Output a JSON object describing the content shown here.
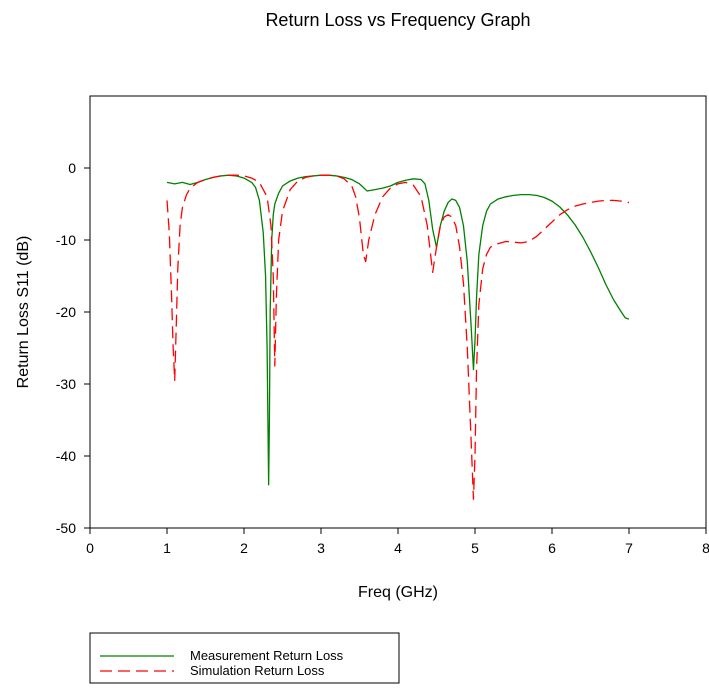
{
  "chart_data": {
    "type": "line",
    "title": "Return Loss vs Frequency Graph",
    "xlabel": "Freq (GHz)",
    "ylabel": "Return Loss S11 (dB)",
    "xlim": [
      0,
      8
    ],
    "ylim": [
      -50,
      10
    ],
    "xticks": [
      0,
      1,
      2,
      3,
      4,
      5,
      6,
      7,
      8
    ],
    "yticks": [
      -50,
      -40,
      -30,
      -20,
      -10,
      0
    ],
    "grid": false,
    "legend_placement": "bottom-left",
    "series": [
      {
        "name": "Measurement Return Loss",
        "color": "#008000",
        "style": "solid",
        "x": [
          1.0,
          1.1,
          1.2,
          1.3,
          1.4,
          1.5,
          1.6,
          1.7,
          1.8,
          1.9,
          2.0,
          2.1,
          2.15,
          2.2,
          2.25,
          2.28,
          2.3,
          2.32,
          2.33,
          2.34,
          2.36,
          2.38,
          2.4,
          2.45,
          2.5,
          2.6,
          2.7,
          2.8,
          2.9,
          3.0,
          3.1,
          3.2,
          3.3,
          3.4,
          3.5,
          3.6,
          3.7,
          3.8,
          3.9,
          4.0,
          4.1,
          4.2,
          4.3,
          4.35,
          4.4,
          4.45,
          4.5,
          4.55,
          4.6,
          4.65,
          4.7,
          4.75,
          4.8,
          4.85,
          4.9,
          4.95,
          4.98,
          5.0,
          5.02,
          5.05,
          5.1,
          5.15,
          5.2,
          5.3,
          5.4,
          5.5,
          5.6,
          5.7,
          5.8,
          5.9,
          6.0,
          6.1,
          6.2,
          6.3,
          6.4,
          6.5,
          6.6,
          6.7,
          6.8,
          6.9,
          6.95,
          7.0
        ],
        "y": [
          -2.0,
          -2.2,
          -2.0,
          -2.3,
          -2.0,
          -1.6,
          -1.3,
          -1.1,
          -1.0,
          -1.1,
          -1.4,
          -2.0,
          -2.7,
          -4.5,
          -9.0,
          -15.0,
          -25.0,
          -44.0,
          -35.0,
          -20.0,
          -10.0,
          -6.5,
          -5.0,
          -3.5,
          -2.5,
          -1.8,
          -1.4,
          -1.2,
          -1.1,
          -1.0,
          -1.0,
          -1.1,
          -1.3,
          -1.6,
          -2.2,
          -3.2,
          -3.0,
          -2.8,
          -2.5,
          -2.0,
          -1.7,
          -1.5,
          -1.6,
          -2.2,
          -4.5,
          -8.5,
          -11.0,
          -8.0,
          -6.0,
          -4.8,
          -4.3,
          -4.5,
          -5.5,
          -8.0,
          -13.0,
          -22.0,
          -28.0,
          -24.0,
          -18.0,
          -12.0,
          -8.0,
          -6.0,
          -5.0,
          -4.3,
          -4.0,
          -3.8,
          -3.7,
          -3.7,
          -3.8,
          -4.1,
          -4.6,
          -5.4,
          -6.5,
          -7.9,
          -9.6,
          -11.6,
          -13.8,
          -16.2,
          -18.3,
          -20.0,
          -20.8,
          -21.0
        ]
      },
      {
        "name": "Simulation Return Loss",
        "color": "#ff0000",
        "style": "dashed",
        "x": [
          1.0,
          1.03,
          1.06,
          1.08,
          1.1,
          1.12,
          1.14,
          1.17,
          1.2,
          1.25,
          1.3,
          1.4,
          1.5,
          1.6,
          1.7,
          1.8,
          1.9,
          2.0,
          2.1,
          2.2,
          2.3,
          2.35,
          2.38,
          2.4,
          2.42,
          2.45,
          2.5,
          2.6,
          2.7,
          2.8,
          2.9,
          3.0,
          3.1,
          3.2,
          3.3,
          3.4,
          3.45,
          3.5,
          3.55,
          3.58,
          3.62,
          3.7,
          3.8,
          3.9,
          4.0,
          4.1,
          4.2,
          4.3,
          4.38,
          4.45,
          4.5,
          4.55,
          4.6,
          4.65,
          4.7,
          4.75,
          4.8,
          4.85,
          4.9,
          4.95,
          4.98,
          5.0,
          5.02,
          5.05,
          5.1,
          5.15,
          5.2,
          5.3,
          5.4,
          5.5,
          5.6,
          5.7,
          5.8,
          5.9,
          6.0,
          6.1,
          6.2,
          6.3,
          6.4,
          6.5,
          6.6,
          6.7,
          6.8,
          6.9,
          7.0
        ],
        "y": [
          -4.5,
          -9.0,
          -18.0,
          -25.0,
          -29.5,
          -22.0,
          -14.0,
          -8.0,
          -5.5,
          -3.8,
          -2.8,
          -2.0,
          -1.6,
          -1.3,
          -1.1,
          -1.0,
          -1.0,
          -1.1,
          -1.4,
          -2.0,
          -4.0,
          -8.0,
          -15.0,
          -27.5,
          -18.0,
          -10.0,
          -6.0,
          -3.0,
          -1.8,
          -1.3,
          -1.1,
          -1.0,
          -1.0,
          -1.1,
          -1.5,
          -2.5,
          -4.0,
          -7.0,
          -12.0,
          -13.0,
          -10.0,
          -6.5,
          -4.0,
          -2.8,
          -2.2,
          -2.0,
          -2.4,
          -4.0,
          -8.0,
          -14.5,
          -11.0,
          -8.0,
          -6.8,
          -6.5,
          -6.8,
          -8.0,
          -11.0,
          -16.0,
          -25.0,
          -38.0,
          -46.0,
          -40.0,
          -28.0,
          -19.0,
          -14.0,
          -12.0,
          -11.0,
          -10.5,
          -10.2,
          -10.3,
          -10.4,
          -10.2,
          -9.5,
          -8.5,
          -7.5,
          -6.5,
          -5.8,
          -5.3,
          -5.0,
          -4.8,
          -4.6,
          -4.5,
          -4.5,
          -4.6,
          -4.8
        ]
      }
    ]
  }
}
